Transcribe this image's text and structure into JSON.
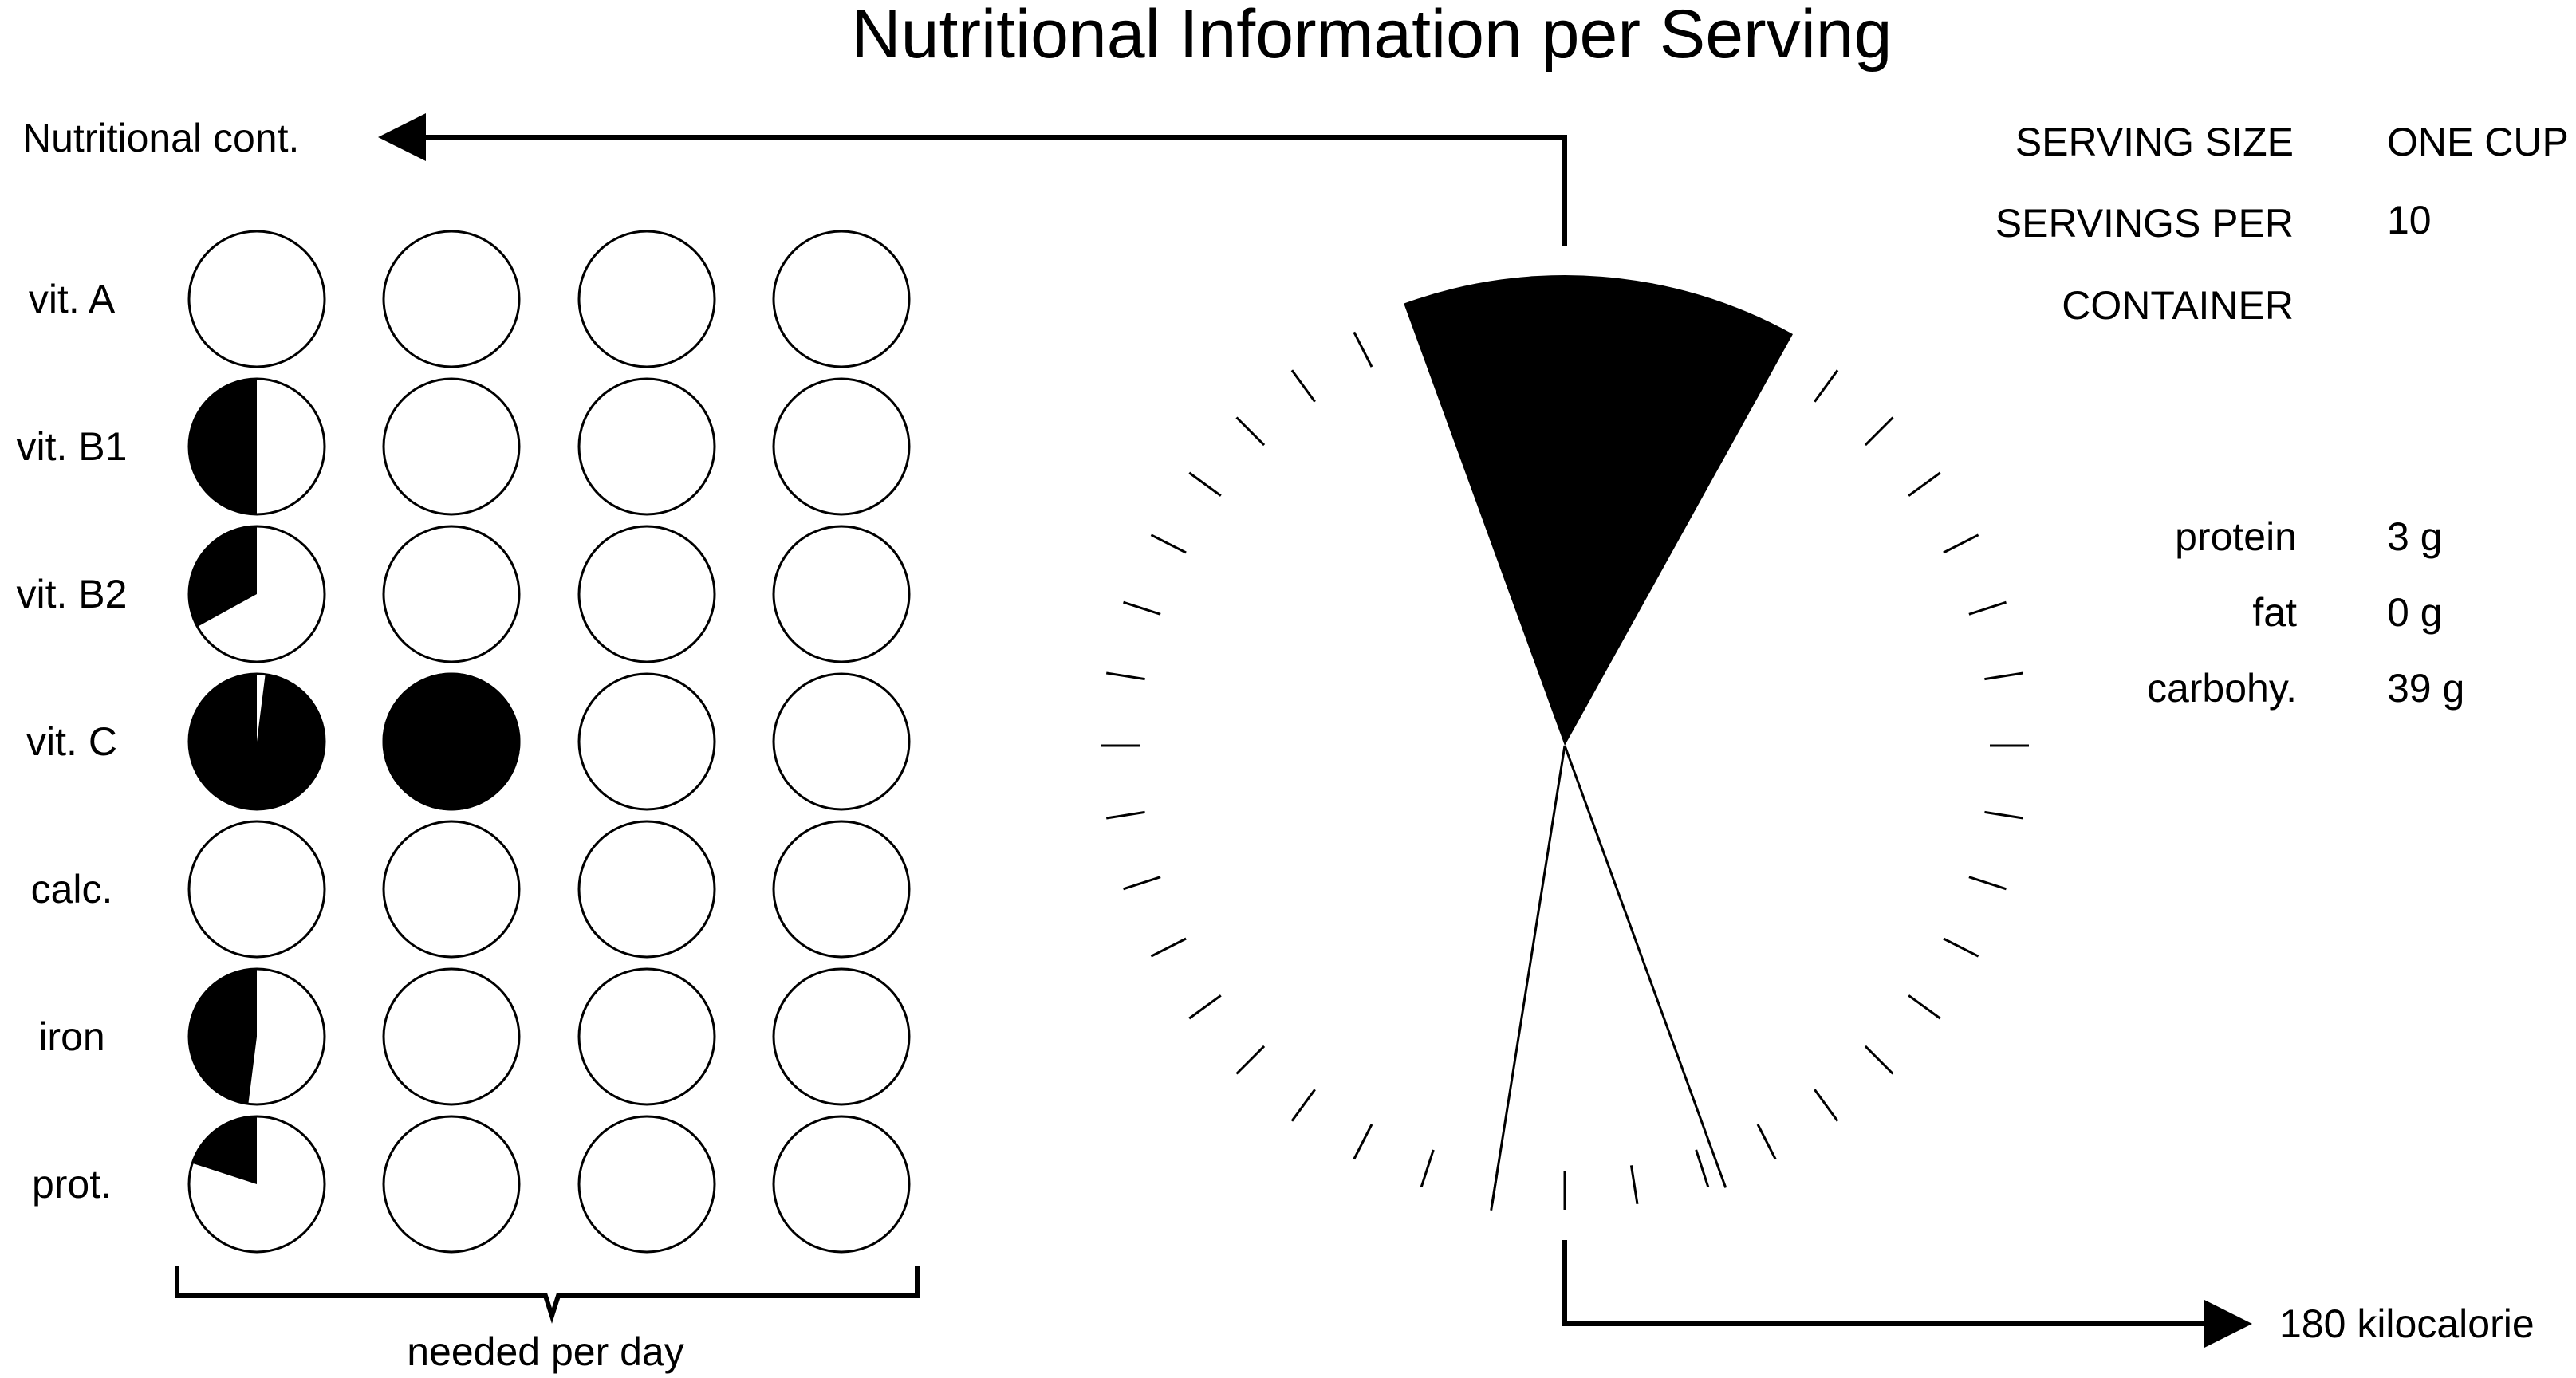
{
  "chart_data": {
    "type": "pie",
    "title": "Nutritional Information per Serving",
    "nutrition_table": {
      "label": "Nutritional cont.",
      "nutrients": [
        "vit. A",
        "vit. B1",
        "vit. B2",
        "vit. C",
        "calc.",
        "iron",
        "prot."
      ],
      "columns": 4,
      "fraction_of_daily_need_per_column": [
        [
          0,
          0,
          0,
          0
        ],
        [
          0.5,
          0,
          0,
          0
        ],
        [
          0.33,
          0,
          0,
          0
        ],
        [
          0.98,
          1,
          0,
          0
        ],
        [
          0,
          0,
          0,
          0
        ],
        [
          0.48,
          0,
          0,
          0
        ],
        [
          0.2,
          0,
          0,
          0
        ]
      ],
      "bracket_label": "needed per day"
    },
    "energy_dial": {
      "value_label": "180 kilocalorie",
      "ticks": 40,
      "sector_start_deg": -20,
      "sector_end_deg": 29,
      "needle_deg": [
        189,
        160
      ]
    },
    "serving_info": [
      {
        "label": "SERVING SIZE",
        "value": "ONE CUP"
      },
      {
        "label": "SERVINGS PER",
        "value": "10"
      },
      {
        "label": "CONTAINER",
        "value": ""
      }
    ],
    "macros": [
      {
        "label": "protein",
        "value": "3 g"
      },
      {
        "label": "fat",
        "value": "0 g"
      },
      {
        "label": "carbohy.",
        "value": "39 g"
      }
    ]
  }
}
